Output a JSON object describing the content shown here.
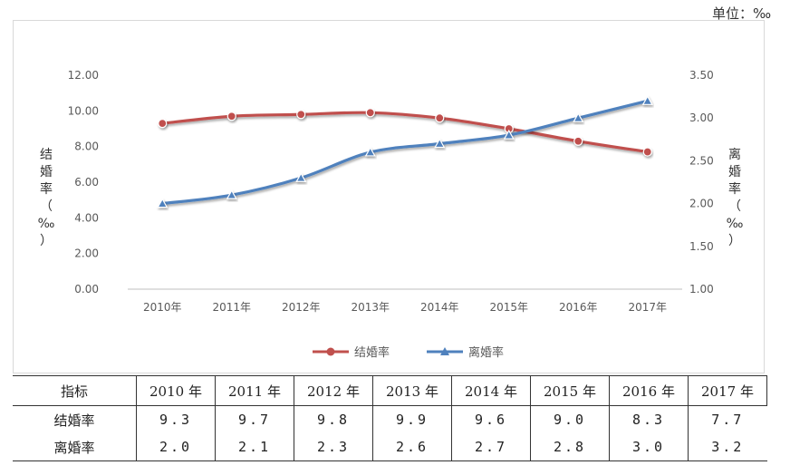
{
  "unit_label": "单位：‰",
  "chart_data": {
    "type": "line",
    "categories": [
      "2010年",
      "2011年",
      "2012年",
      "2013年",
      "2014年",
      "2015年",
      "2016年",
      "2017年"
    ],
    "series": [
      {
        "name": "结婚率",
        "axis": "left",
        "color": "#c0504d",
        "marker": "circle",
        "values": [
          9.3,
          9.7,
          9.8,
          9.9,
          9.6,
          9.0,
          8.3,
          7.7
        ]
      },
      {
        "name": "离婚率",
        "axis": "right",
        "color": "#4f81bd",
        "marker": "triangle",
        "values": [
          2.0,
          2.1,
          2.3,
          2.6,
          2.7,
          2.8,
          3.0,
          3.2
        ]
      }
    ],
    "y_left": {
      "label": "结婚率（‰）",
      "ylim": [
        0,
        12
      ],
      "ticks": [
        "0.00",
        "2.00",
        "4.00",
        "6.00",
        "8.00",
        "10.00",
        "12.00"
      ]
    },
    "y_right": {
      "label": "离婚率（‰）",
      "ylim": [
        1,
        3.5
      ],
      "ticks": [
        "1.00",
        "1.50",
        "2.00",
        "2.50",
        "3.00",
        "3.50"
      ]
    },
    "grid": false,
    "legend": "bottom"
  },
  "table": {
    "header": [
      "指标",
      "2010 年",
      "2011 年",
      "2012 年",
      "2013 年",
      "2014 年",
      "2015 年",
      "2016 年",
      "2017 年"
    ],
    "rows": [
      {
        "label": "结婚率",
        "values": [
          "9.3",
          "9.7",
          "9.8",
          "9.9",
          "9.6",
          "9.0",
          "8.3",
          "7.7"
        ]
      },
      {
        "label": "离婚率",
        "values": [
          "2.0",
          "2.1",
          "2.3",
          "2.6",
          "2.7",
          "2.8",
          "3.0",
          "3.2"
        ]
      }
    ]
  }
}
